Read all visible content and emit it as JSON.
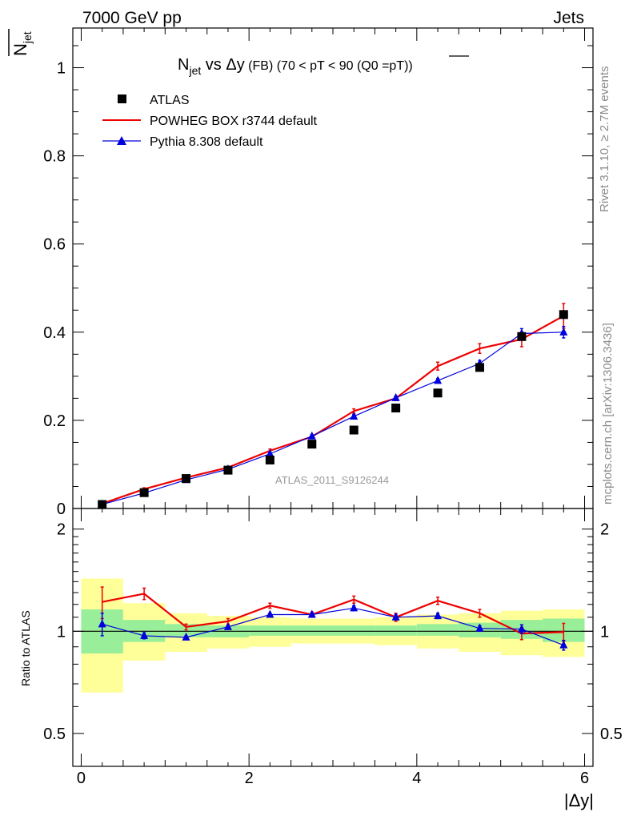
{
  "header": {
    "left": "7000 GeV pp",
    "right": "Jets"
  },
  "side_labels": {
    "rivet": "Rivet 3.1.10, ≥ 2.7M events",
    "mcplots": "mcplots.cern.ch [arXiv:1306.3436]"
  },
  "main_panel": {
    "title_main": "N",
    "title_sub": "jet",
    "title_vs": " vs ",
    "title_var": "Δy",
    "title_rest": " (FB) (70 < pT <  90 (Q0 =",
    "title_over": "pT",
    "title_end": "))",
    "y_label_main": "N",
    "y_label_sub": "jet",
    "watermark": "ATLAS_2011_S9126244",
    "y_ticks": [
      "0",
      "0.2",
      "0.4",
      "0.6",
      "0.8",
      "1"
    ]
  },
  "ratio_panel": {
    "y_label": "Ratio to ATLAS",
    "y_ticks_left": [
      "0.5",
      "1",
      "2"
    ],
    "y_ticks_right": [
      "0.5",
      "1",
      "2"
    ]
  },
  "x_axis": {
    "label": "|Δy|",
    "ticks": [
      "0",
      "2",
      "4",
      "6"
    ]
  },
  "legend": {
    "atlas": "ATLAS",
    "powheg": "POWHEG BOX r3744 default",
    "pythia": "Pythia 8.308 default"
  },
  "colors": {
    "atlas": "#000000",
    "powheg": "#ee0000",
    "pythia": "#0000dd",
    "band_inner": "#99ee99",
    "band_outer": "#ffff99"
  },
  "chart_data": {
    "type": "line",
    "x_label": "|Δy|",
    "xlim": [
      -0.1,
      6.1
    ],
    "ylim": [
      0,
      1.09
    ],
    "ratio_ylim": [
      0.4,
      2.3
    ],
    "ratio_log_scale": true,
    "bins": [
      [
        0,
        0.5
      ],
      [
        0.5,
        1
      ],
      [
        1,
        1.5
      ],
      [
        1.5,
        2
      ],
      [
        2,
        2.5
      ],
      [
        2.5,
        3
      ],
      [
        3,
        3.5
      ],
      [
        3.5,
        4
      ],
      [
        4,
        4.5
      ],
      [
        4.5,
        5
      ],
      [
        5,
        5.5
      ],
      [
        5.5,
        6
      ]
    ],
    "x": [
      0.25,
      0.75,
      1.25,
      1.75,
      2.25,
      2.75,
      3.25,
      3.75,
      4.25,
      4.75,
      5.25,
      5.75
    ],
    "series": [
      {
        "name": "ATLAS",
        "style": "marker-square",
        "values": [
          0.009,
          0.036,
          0.068,
          0.087,
          0.11,
          0.146,
          0.178,
          0.228,
          0.262,
          0.32,
          0.39,
          0.44
        ]
      },
      {
        "name": "POWHEG BOX r3744 default",
        "style": "line",
        "values": [
          0.011,
          0.044,
          0.07,
          0.093,
          0.131,
          0.163,
          0.221,
          0.25,
          0.323,
          0.363,
          0.384,
          0.437
        ],
        "errors": [
          0.002,
          0.003,
          0.003,
          0.003,
          0.004,
          0.004,
          0.005,
          0.005,
          0.009,
          0.011,
          0.017,
          0.028
        ]
      },
      {
        "name": "Pythia 8.308 default",
        "style": "line-triangle",
        "values": [
          0.0095,
          0.035,
          0.065,
          0.089,
          0.124,
          0.164,
          0.209,
          0.251,
          0.29,
          0.329,
          0.397,
          0.4
        ],
        "errors": [
          0.0015,
          0.002,
          0.002,
          0.003,
          0.003,
          0.003,
          0.004,
          0.004,
          0.005,
          0.007,
          0.011,
          0.013
        ]
      }
    ],
    "ratio": {
      "powheg": [
        1.22,
        1.29,
        1.03,
        1.07,
        1.19,
        1.12,
        1.24,
        1.1,
        1.23,
        1.13,
        0.985,
        0.995
      ],
      "powheg_err": [
        0.13,
        0.05,
        0.02,
        0.02,
        0.02,
        0.02,
        0.03,
        0.03,
        0.03,
        0.03,
        0.04,
        0.06
      ],
      "pythia": [
        1.05,
        0.97,
        0.96,
        1.03,
        1.12,
        1.12,
        1.17,
        1.1,
        1.11,
        1.02,
        1.015,
        0.91
      ],
      "pythia_err": [
        0.08,
        0.02,
        0.01,
        0.01,
        0.01,
        0.01,
        0.02,
        0.02,
        0.02,
        0.02,
        0.03,
        0.03
      ],
      "band_inner": [
        [
          0.86,
          1.16
        ],
        [
          0.93,
          1.08
        ],
        [
          0.96,
          1.05
        ],
        [
          0.96,
          1.04
        ],
        [
          0.97,
          1.04
        ],
        [
          0.97,
          1.04
        ],
        [
          0.97,
          1.04
        ],
        [
          0.97,
          1.04
        ],
        [
          0.97,
          1.05
        ],
        [
          0.96,
          1.06
        ],
        [
          0.95,
          1.08
        ],
        [
          0.93,
          1.09
        ]
      ],
      "band_outer": [
        [
          0.66,
          1.43
        ],
        [
          0.82,
          1.21
        ],
        [
          0.87,
          1.13
        ],
        [
          0.89,
          1.11
        ],
        [
          0.9,
          1.1
        ],
        [
          0.92,
          1.09
        ],
        [
          0.92,
          1.09
        ],
        [
          0.91,
          1.1
        ],
        [
          0.89,
          1.12
        ],
        [
          0.87,
          1.13
        ],
        [
          0.85,
          1.15
        ],
        [
          0.84,
          1.16
        ]
      ]
    }
  }
}
